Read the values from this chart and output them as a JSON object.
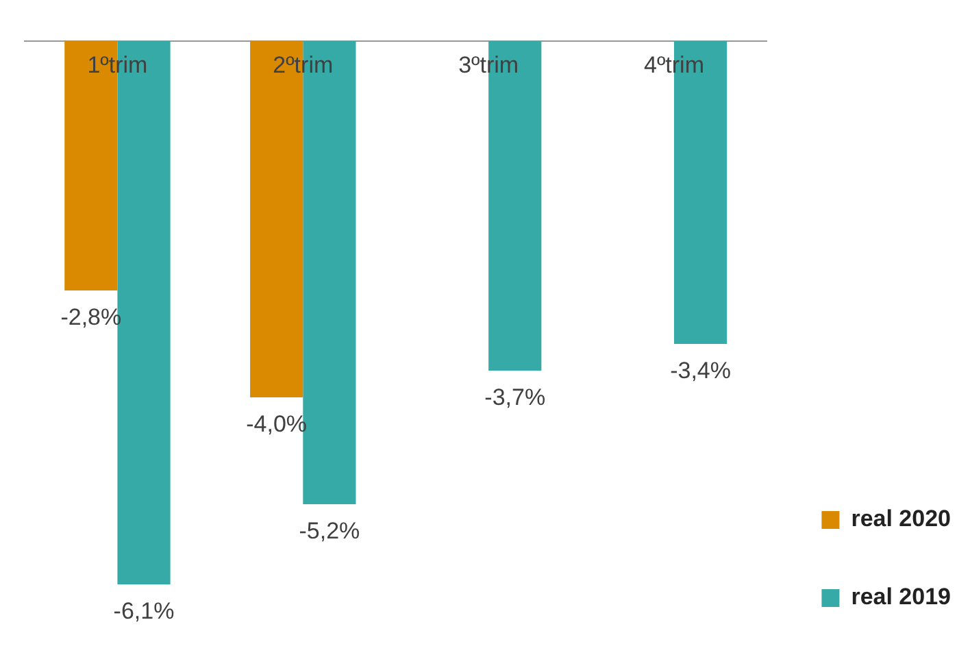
{
  "chart_data": {
    "type": "bar",
    "categories": [
      "1ºtrim",
      "2ºtrim",
      "3ºtrim",
      "4ºtrim"
    ],
    "series": [
      {
        "name": "real 2020",
        "color": "#d98a00",
        "values": [
          -2.8,
          -4.0,
          null,
          null
        ],
        "value_labels": [
          "-2,8%",
          "-4,0%",
          null,
          null
        ]
      },
      {
        "name": "real 2019",
        "color": "#36aaa6",
        "values": [
          -6.1,
          -5.2,
          -3.7,
          -3.4
        ],
        "value_labels": [
          "-6,1%",
          "-5,2%",
          "-3,7%",
          "-3,4%"
        ]
      }
    ],
    "relative": false,
    "grid": false,
    "legend": "bottom right"
  }
}
